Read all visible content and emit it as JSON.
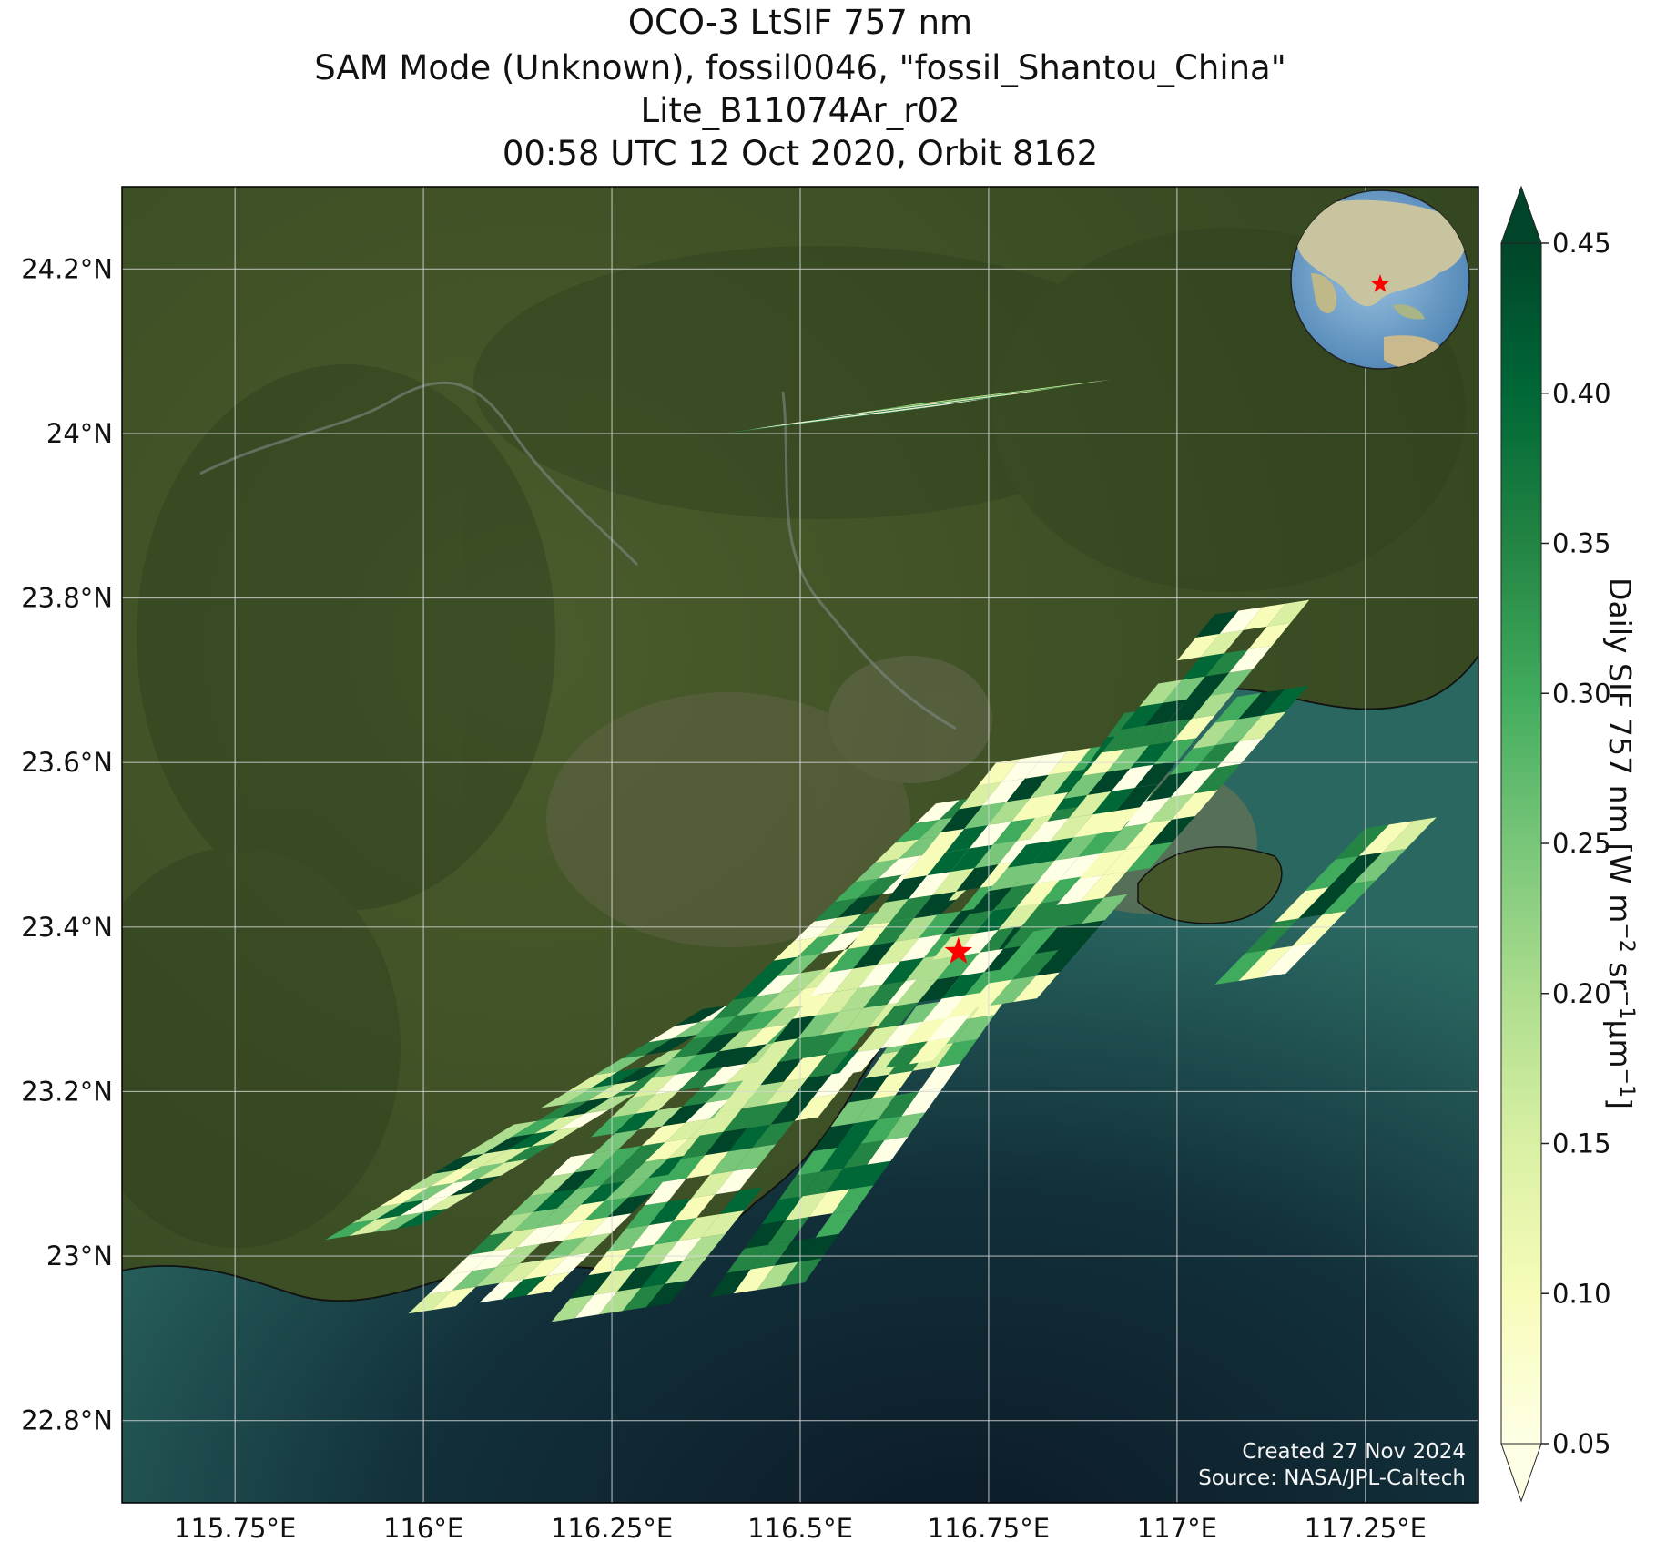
{
  "title": {
    "line1": "OCO-3 LtSIF 757 nm",
    "line2": "SAM Mode (Unknown), fossil0046, \"fossil_Shantou_China\"",
    "line3": "Lite_B11074Ar_r02",
    "line4": "00:58 UTC 12 Oct 2020, Orbit 8162"
  },
  "map": {
    "lon_range": [
      115.6,
      117.4
    ],
    "lat_range": [
      22.7,
      24.3
    ],
    "lon_ticks": [
      115.75,
      116.0,
      116.25,
      116.5,
      116.75,
      117.0,
      117.25
    ],
    "lon_tick_labels": [
      "115.75°E",
      "116°E",
      "116.25°E",
      "116.5°E",
      "116.75°E",
      "117°E",
      "117.25°E"
    ],
    "lat_ticks": [
      22.8,
      23.0,
      23.2,
      23.4,
      23.6,
      23.8,
      24.0,
      24.2
    ],
    "lat_tick_labels": [
      "22.8°N",
      "23°N",
      "23.2°N",
      "23.4°N",
      "23.6°N",
      "23.8°N",
      "24°N",
      "24.2°N"
    ],
    "gridlines": true,
    "basemap": "satellite imagery",
    "target": {
      "name": "fossil_Shantou_China",
      "lon": 116.71,
      "lat": 23.37,
      "marker": "red-star"
    },
    "inset_globe": {
      "placement": "top-right",
      "marker": "red-star"
    }
  },
  "colorbar": {
    "label_main": "Daily SIF 757 nm [W m",
    "label_sup1": "−2",
    "label_mid": " sr",
    "label_sup2": "−1",
    "label_mu": "μm",
    "label_sup3": "−1",
    "label_end": "]",
    "min": 0.05,
    "max": 0.45,
    "ticks": [
      "0.05",
      "0.10",
      "0.15",
      "0.20",
      "0.25",
      "0.30",
      "0.35",
      "0.40",
      "0.45"
    ],
    "extend": "both",
    "colormap": "YlGn",
    "colors": [
      "#ffffe5",
      "#f7fcb9",
      "#d9f0a3",
      "#addd8e",
      "#78c679",
      "#41ab5d",
      "#238443",
      "#006837",
      "#004529"
    ]
  },
  "credits": {
    "created": "Created 27 Nov 2024",
    "source": "Source: NASA/JPL-Caltech"
  },
  "colors": {
    "land": "#3f5227",
    "sea": "#1d4a4c",
    "deep_sea": "#0e1c2a",
    "star": "#ff0000"
  }
}
